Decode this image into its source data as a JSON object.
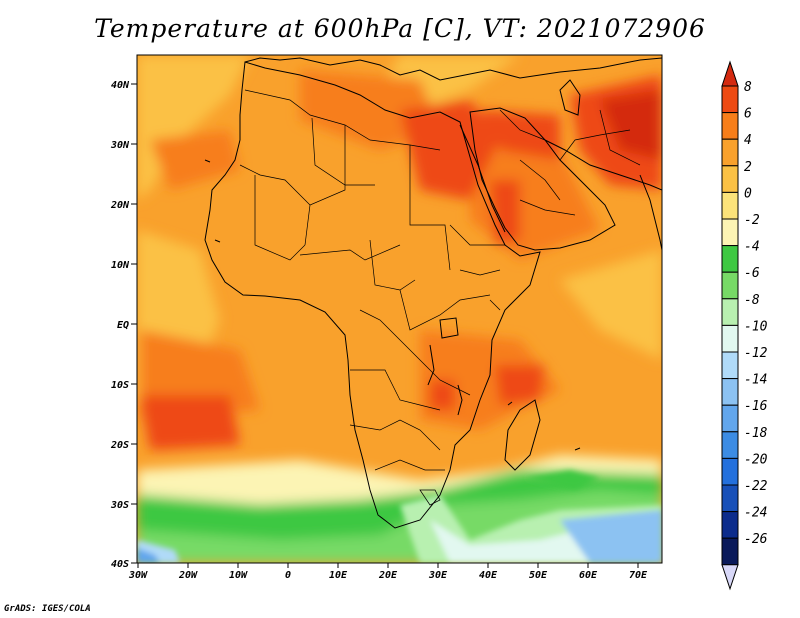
{
  "title": "Temperature at 600hPa [C], VT: 2021072906",
  "credit": "GrADS: IGES/COLA",
  "lat_labels": [
    "40N",
    "30N",
    "20N",
    "10N",
    "EQ",
    "10S",
    "20S",
    "30S",
    "40S"
  ],
  "lon_labels": [
    "30W",
    "20W",
    "10W",
    "0",
    "10E",
    "20E",
    "30E",
    "40E",
    "50E",
    "60E",
    "70E"
  ],
  "colorbar": {
    "labels": [
      "8",
      "6",
      "4",
      "2",
      "0",
      "-2",
      "-4",
      "-6",
      "-8",
      "-10",
      "-12",
      "-14",
      "-16",
      "-18",
      "-20",
      "-22",
      "-24",
      "-26"
    ],
    "colors": [
      "#d42a10",
      "#ee4a12",
      "#f77e1a",
      "#f9a12c",
      "#fbc144",
      "#fce37a",
      "#fcf4b4",
      "#3ec842",
      "#77da66",
      "#b8f0b0",
      "#e2f8f0",
      "#b0daf8",
      "#8cc2f2",
      "#62a6ec",
      "#3c8ce4",
      "#2470dc",
      "#1850b8",
      "#0c2c8c",
      "#0a1a5a",
      "#d8d8f8"
    ]
  },
  "colors": {
    "base_orange": "#f9a12c",
    "hot_red": "#e8461a",
    "cold_green": "#3ec842",
    "cold_blue": "#8cc2f2",
    "coast": "#000000"
  }
}
